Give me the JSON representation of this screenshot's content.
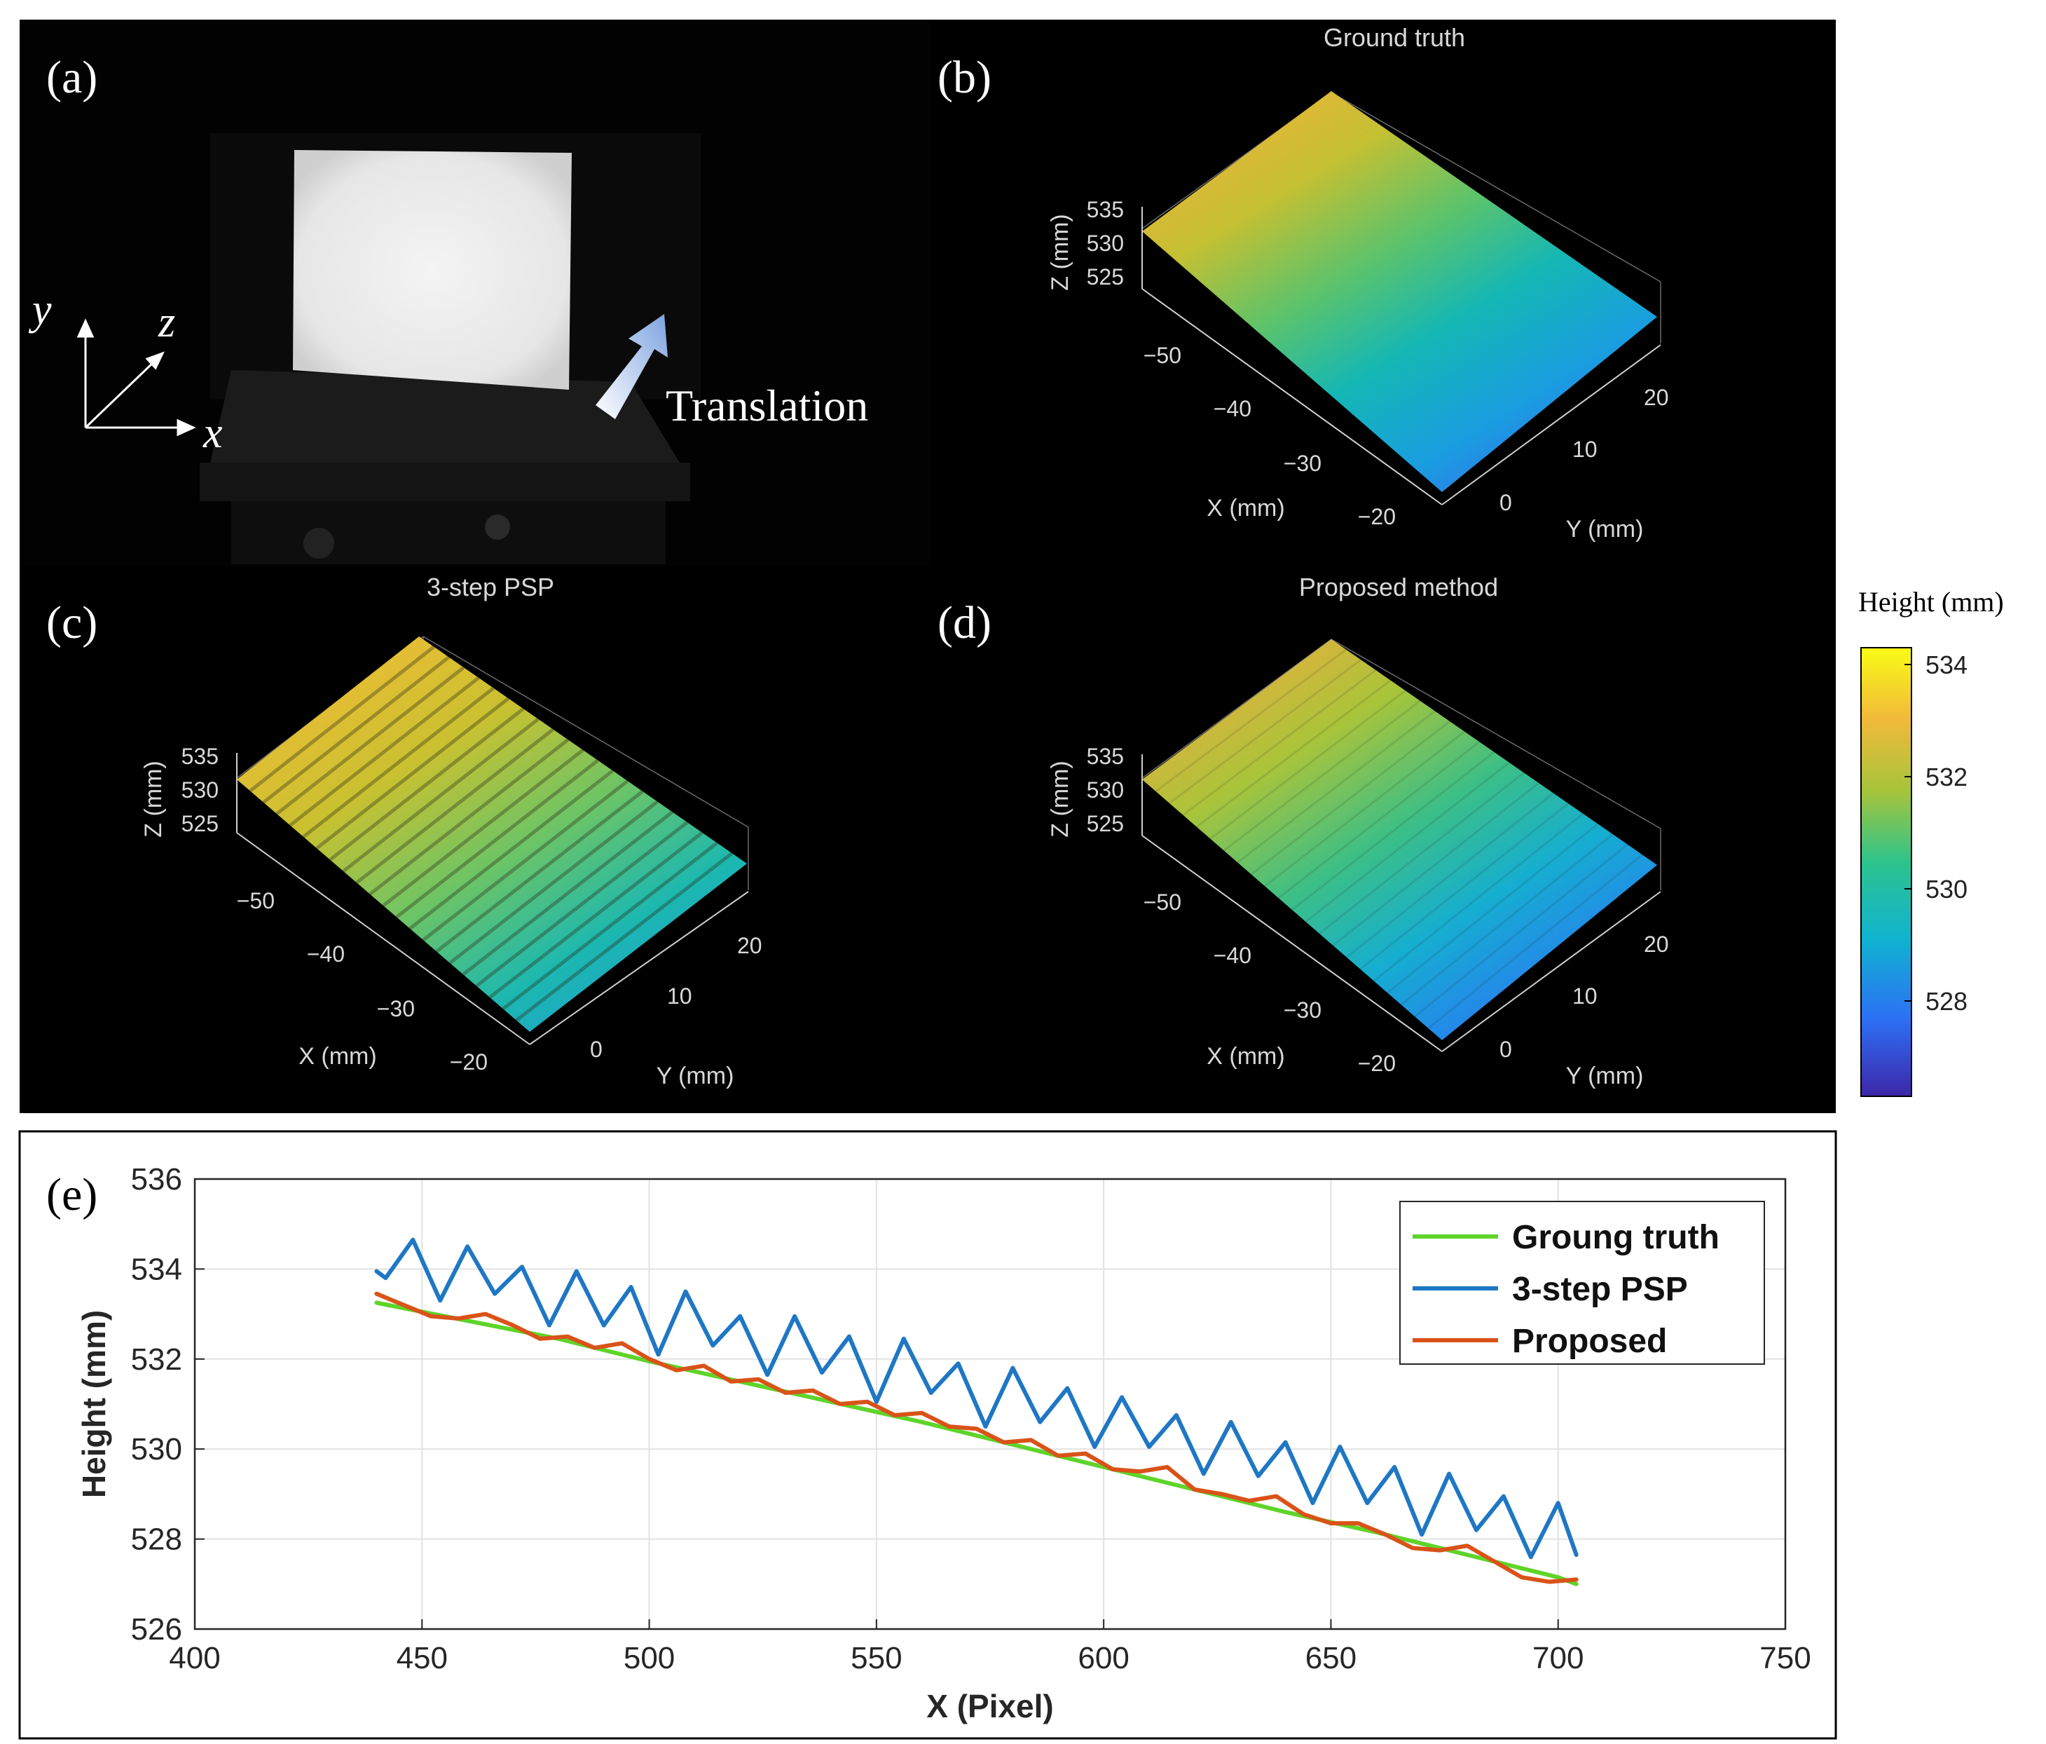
{
  "panels": {
    "a": {
      "label": "(a)",
      "axes": {
        "x": "x",
        "y": "y",
        "z": "z"
      },
      "arrow_text": "Translation"
    },
    "b": {
      "label": "(b)",
      "title": "Ground truth",
      "z_axis_label": "Z (mm)",
      "x_axis_label": "X (mm)",
      "y_axis_label": "Y (mm)",
      "z_ticks": [
        "535",
        "530",
        "525"
      ],
      "x_ticks": [
        "−50",
        "−40",
        "−30",
        "−20"
      ],
      "y_ticks": [
        "0",
        "10",
        "20"
      ]
    },
    "c": {
      "label": "(c)",
      "title": "3-step PSP",
      "z_axis_label": "Z (mm)",
      "x_axis_label": "X (mm)",
      "y_axis_label": "Y (mm)",
      "z_ticks": [
        "535",
        "530",
        "525"
      ],
      "x_ticks": [
        "−50",
        "−40",
        "−30",
        "−20"
      ],
      "y_ticks": [
        "0",
        "10",
        "20"
      ]
    },
    "d": {
      "label": "(d)",
      "title": "Proposed method",
      "z_axis_label": "Z (mm)",
      "x_axis_label": "X (mm)",
      "y_axis_label": "Y (mm)",
      "z_ticks": [
        "535",
        "530",
        "525"
      ],
      "x_ticks": [
        "−50",
        "−40",
        "−30",
        "−20"
      ],
      "y_ticks": [
        "0",
        "10",
        "20"
      ]
    },
    "e": {
      "label": "(e)"
    }
  },
  "colorbar": {
    "title": "Height (mm)",
    "ticks": [
      534,
      532,
      530,
      528
    ],
    "range": [
      526.3,
      534.3
    ],
    "colormap": [
      "#3e26a8",
      "#2d6ff4",
      "#10b3d0",
      "#2cc38e",
      "#a6c43b",
      "#f1b93a",
      "#f9fb15"
    ]
  },
  "chart_data": {
    "type": "line",
    "title": "",
    "xlabel": "X (Pixel)",
    "ylabel": "Height (mm)",
    "xlim": [
      400,
      750
    ],
    "ylim": [
      526,
      536
    ],
    "xticks": [
      400,
      450,
      500,
      550,
      600,
      650,
      700,
      750
    ],
    "yticks": [
      526,
      528,
      530,
      532,
      534,
      536
    ],
    "grid": true,
    "legend_position": "top-right",
    "series": [
      {
        "name": "Groung truth",
        "color": "#5fd42a",
        "x": [
          440,
          460,
          480,
          500,
          520,
          540,
          560,
          580,
          600,
          620,
          640,
          660,
          680,
          700,
          704
        ],
        "y": [
          533.25,
          532.85,
          532.45,
          531.95,
          531.5,
          531.05,
          530.6,
          530.1,
          529.6,
          529.1,
          528.6,
          528.15,
          527.65,
          527.15,
          527.0
        ]
      },
      {
        "name": "3-step PSP",
        "color": "#1f77c4",
        "x": [
          440,
          442,
          448,
          454,
          460,
          466,
          472,
          478,
          484,
          490,
          496,
          502,
          508,
          514,
          520,
          526,
          532,
          538,
          544,
          550,
          556,
          562,
          568,
          574,
          580,
          586,
          592,
          598,
          604,
          610,
          616,
          622,
          628,
          634,
          640,
          646,
          652,
          658,
          664,
          670,
          676,
          682,
          688,
          694,
          700,
          704
        ],
        "y": [
          533.95,
          533.8,
          534.65,
          533.3,
          534.5,
          533.45,
          534.05,
          532.75,
          533.95,
          532.75,
          533.6,
          532.1,
          533.5,
          532.3,
          532.95,
          531.65,
          532.95,
          531.7,
          532.5,
          531.05,
          532.45,
          531.25,
          531.9,
          530.5,
          531.8,
          530.6,
          531.35,
          530.05,
          531.15,
          530.05,
          530.75,
          529.45,
          530.6,
          529.4,
          530.15,
          528.8,
          530.05,
          528.8,
          529.6,
          528.1,
          529.45,
          528.2,
          528.95,
          527.6,
          528.8,
          527.65
        ]
      },
      {
        "name": "Proposed",
        "color": "#d95319",
        "x": [
          440,
          446,
          452,
          458,
          464,
          470,
          476,
          482,
          488,
          494,
          500,
          506,
          512,
          518,
          524,
          530,
          536,
          542,
          548,
          554,
          560,
          566,
          572,
          578,
          584,
          590,
          596,
          602,
          608,
          614,
          620,
          626,
          632,
          638,
          644,
          650,
          656,
          662,
          668,
          674,
          680,
          686,
          692,
          698,
          704
        ],
        "y": [
          533.45,
          533.2,
          532.95,
          532.9,
          533.0,
          532.75,
          532.45,
          532.5,
          532.25,
          532.35,
          532.0,
          531.75,
          531.85,
          531.5,
          531.55,
          531.25,
          531.3,
          531.0,
          531.05,
          530.75,
          530.8,
          530.5,
          530.45,
          530.15,
          530.2,
          529.85,
          529.9,
          529.55,
          529.5,
          529.6,
          529.1,
          529.0,
          528.85,
          528.95,
          528.55,
          528.35,
          528.35,
          528.1,
          527.8,
          527.75,
          527.85,
          527.5,
          527.15,
          527.05,
          527.1
        ]
      }
    ]
  }
}
